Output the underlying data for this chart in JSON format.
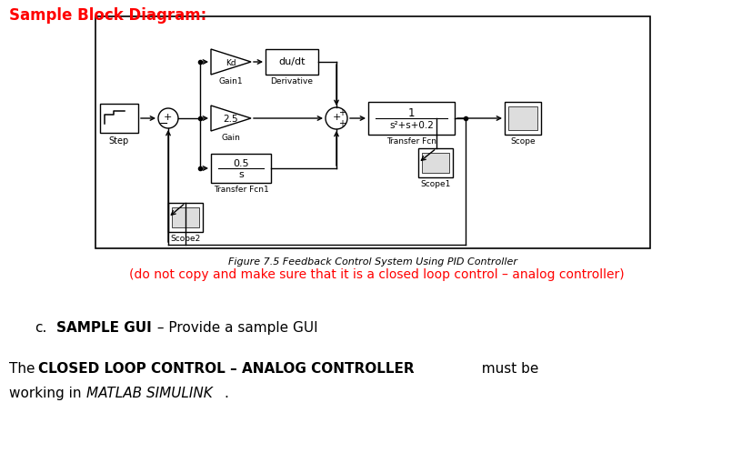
{
  "title": "Sample Block Diagram:",
  "title_color": "#FF0000",
  "fig_caption": "Figure 7.5 Feedback Control System Using PID Controller",
  "red_note": "(do not copy and make sure that it is a closed loop control – analog controller)",
  "background_color": "#ffffff"
}
